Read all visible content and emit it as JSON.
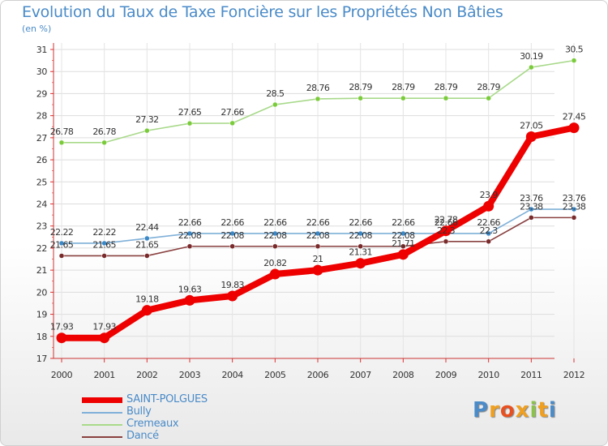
{
  "title": "Evolution du Taux de Taxe Foncière sur les Propriétés Non Bâties",
  "unit_label": "(en %)",
  "logo": {
    "text": "Proxiti",
    "colors": [
      "#4a8bc8",
      "#f0a020",
      "#e85020",
      "#f0a020",
      "#8bc34a",
      "#f0a020",
      "#4a8bc8"
    ]
  },
  "chart_data": {
    "type": "line",
    "title": "Evolution du Taux de Taxe Foncière sur les Propriétés Non Bâties",
    "ylabel": "(en %)",
    "xlabel": "",
    "x": [
      "2000",
      "2001",
      "2002",
      "2003",
      "2004",
      "2005",
      "2006",
      "2007",
      "2008",
      "2009",
      "2010",
      "2011",
      "2012"
    ],
    "ylim": [
      17,
      31
    ],
    "yticks": [
      17,
      18,
      19,
      20,
      21,
      22,
      23,
      24,
      25,
      26,
      27,
      28,
      29,
      30,
      31
    ],
    "series": [
      {
        "name": "SAINT-POLGUES",
        "color": "#ee0000",
        "line_color": "#ee0000",
        "width": "thick",
        "values": [
          17.93,
          17.93,
          19.18,
          19.63,
          19.83,
          20.82,
          21.0,
          21.31,
          21.71,
          22.78,
          23.9,
          27.05,
          27.45
        ],
        "labels": [
          "17.93",
          "17.93",
          "19.18",
          "19.63",
          "19.83",
          "20.82",
          "21",
          "21.31",
          "21.71",
          "22.78",
          "23.9",
          "27.05",
          "27.45"
        ]
      },
      {
        "name": "Bully",
        "color": "#3a88c8",
        "line_color": "#7fb0d8",
        "width": "thin",
        "values": [
          22.22,
          22.22,
          22.44,
          22.66,
          22.66,
          22.66,
          22.66,
          22.66,
          22.66,
          22.66,
          22.66,
          23.76,
          23.76
        ],
        "labels": [
          "22.22",
          "22.22",
          "22.44",
          "22.66",
          "22.66",
          "22.66",
          "22.66",
          "22.66",
          "22.66",
          "22.66",
          "22.66",
          "23.76",
          "23.76"
        ]
      },
      {
        "name": "Cremeaux",
        "color": "#7acb3a",
        "line_color": "#a8d98a",
        "width": "thin",
        "values": [
          26.78,
          26.78,
          27.32,
          27.65,
          27.66,
          28.5,
          28.76,
          28.79,
          28.79,
          28.79,
          28.79,
          30.19,
          30.5
        ],
        "labels": [
          "26.78",
          "26.78",
          "27.32",
          "27.65",
          "27.66",
          "28.5",
          "28.76",
          "28.79",
          "28.79",
          "28.79",
          "28.79",
          "30.19",
          "30.5"
        ]
      },
      {
        "name": "Dancé",
        "color": "#7a2a2a",
        "line_color": "#8a4040",
        "width": "thin",
        "values": [
          21.65,
          21.65,
          21.65,
          22.08,
          22.08,
          22.08,
          22.08,
          22.08,
          22.08,
          22.3,
          22.3,
          23.38,
          23.38
        ],
        "labels": [
          "21.65",
          "21.65",
          "21.65",
          "22.08",
          "22.08",
          "22.08",
          "22.08",
          "22.08",
          "22.08",
          "22.3",
          "22.3",
          "23.38",
          "23.38"
        ]
      }
    ]
  }
}
